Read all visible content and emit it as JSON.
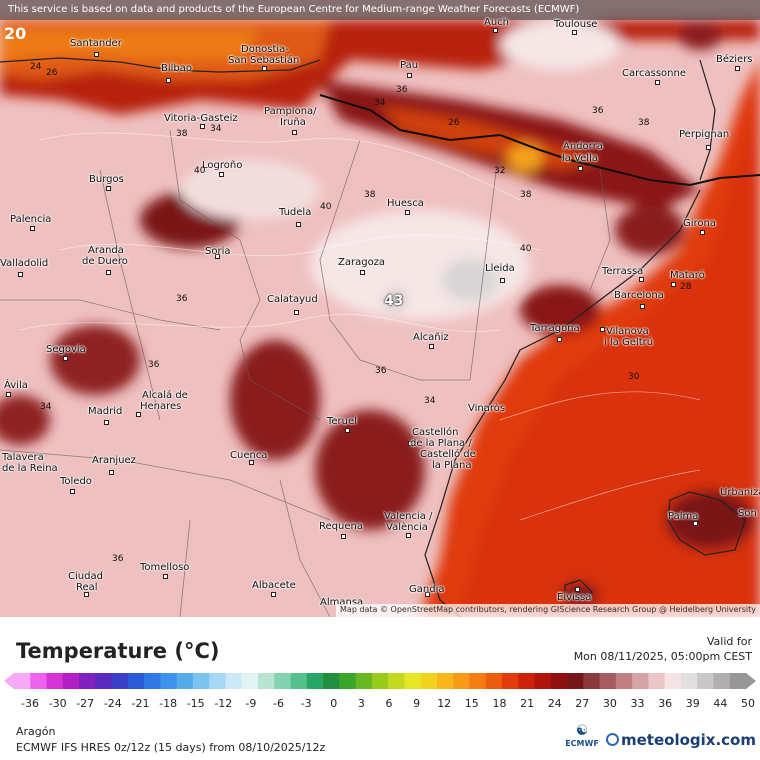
{
  "banner": "This service is based on data and products of the European Centre for Medium-range Weather Forecasts (ECMWF)",
  "attribution": "Map data © OpenStreetMap contributors, rendering GIScience Research Group @ Heidelberg University",
  "corner_value": "20",
  "peak_value": "43",
  "cities": [
    "Auch",
    "Toulouse",
    "Santander",
    "Donostia-",
    "San Sebastián",
    "Bilbao",
    "Pau",
    "Carcassonne",
    "Béziers",
    "Vitoria-Gasteiz",
    "Pamplona/",
    "Iruña",
    "Perpignan",
    "Andorra",
    "la Vella",
    "Logroño",
    "Burgos",
    "Huesca",
    "Tudela",
    "Palencia",
    "Girona",
    "Aranda",
    "de Duero",
    "Soria",
    "Zaragoza",
    "Lleida",
    "Terrassa",
    "Mataró",
    "Valladolid",
    "Calatayud",
    "Barcelona",
    "Tarragona",
    "Vilanova",
    "i la Geltrú",
    "Alcañiz",
    "Segovia",
    "Ávila",
    "Alcalá de",
    "Henares",
    "Madrid",
    "Teruel",
    "Vinaròs",
    "Castellón",
    "de la Plana /",
    "Castelló de",
    "la Plana",
    "Talavera",
    "de la Reina",
    "Aranjuez",
    "Cuenca",
    "Toledo",
    "Urbanización",
    "Son",
    "Palma",
    "Requena",
    "Valencia /",
    "València",
    "Ciudad",
    "Real",
    "Tomelloso",
    "Albacete",
    "Gandia",
    "Eivissa",
    "Almansa"
  ],
  "isotherm_labels": [
    "24",
    "26",
    "28",
    "30",
    "32",
    "34",
    "36",
    "38",
    "40"
  ],
  "legend": {
    "title": "Temperature (°C)",
    "valid_label": "Valid for",
    "valid_date": "Mon 08/11/2025, 05:00pm CEST",
    "ticks": [
      "-36",
      "-30",
      "-27",
      "-24",
      "-21",
      "-18",
      "-15",
      "-12",
      "-9",
      "-6",
      "-3",
      "0",
      "3",
      "6",
      "9",
      "12",
      "15",
      "18",
      "21",
      "24",
      "27",
      "30",
      "33",
      "36",
      "39",
      "44",
      "50"
    ],
    "colors": [
      "#f7a9f7",
      "#ee63ee",
      "#d435d4",
      "#b020c4",
      "#8020c0",
      "#5a2bc0",
      "#3b3fc8",
      "#2a5ad6",
      "#2f78e6",
      "#3b93ec",
      "#56ace9",
      "#7bc4f0",
      "#a4d8f4",
      "#cbe9f6",
      "#e2f3f3",
      "#b8e4d2",
      "#83d3b0",
      "#54c08d",
      "#2aa568",
      "#20903f",
      "#3aa42b",
      "#68b821",
      "#97ca1b",
      "#c3da20",
      "#e5e624",
      "#f1d21c",
      "#f7b71b",
      "#f89a18",
      "#f47d12",
      "#ec5d0e",
      "#e23c0c",
      "#cf220c",
      "#b2150c",
      "#901010",
      "#751718",
      "#8a3a3f",
      "#a65b61",
      "#c07e83",
      "#d8a3a6",
      "#ebc6c8",
      "#f7e3e4",
      "#e2dfdf",
      "#c9c7c7",
      "#b0aeae",
      "#989696"
    ],
    "region": "Aragón",
    "model": "ECMWF IFS HRES 0z/12z (15 days) from 08/10/2025/12z",
    "ecmwf": "ECMWF",
    "brand": "meteologix.com"
  }
}
